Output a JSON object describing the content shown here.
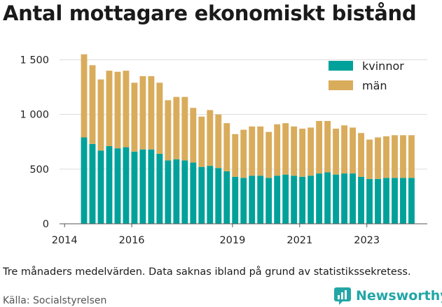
{
  "title": "Antal mottagare ekonomiskt bistånd",
  "note": "Tre månaders medelvärden. Data saknas ibland på grund av statistikssekretess.",
  "source": "Källa: Socialstyrelsen",
  "brand": {
    "name": "Newsworthy",
    "icon": "newsworthy-logo-icon",
    "color": "#23a6a6"
  },
  "chart_data": {
    "type": "bar",
    "stacked": true,
    "x_ticks": [
      "2014",
      "2016",
      "2019",
      "2021",
      "2023"
    ],
    "y_ticks": [
      "0",
      "500",
      "1 000",
      "1 500"
    ],
    "y_tick_values": [
      0,
      500,
      1000,
      1500
    ],
    "ylim": [
      0,
      1650
    ],
    "xlim": [
      2013.85,
      2024.8
    ],
    "x_tick_positions": [
      2014,
      2016,
      2019,
      2021,
      2023
    ],
    "grid": "horizontal",
    "legend_position": "top-right",
    "x": [
      2014.58,
      2014.83,
      2015.08,
      2015.33,
      2015.58,
      2015.83,
      2016.08,
      2016.33,
      2016.58,
      2016.83,
      2017.08,
      2017.33,
      2017.58,
      2017.83,
      2018.08,
      2018.33,
      2018.58,
      2018.83,
      2019.08,
      2019.33,
      2019.58,
      2019.83,
      2020.08,
      2020.33,
      2020.58,
      2020.83,
      2021.08,
      2021.33,
      2021.58,
      2021.83,
      2022.08,
      2022.33,
      2022.58,
      2022.83,
      2023.08,
      2023.33,
      2023.58,
      2023.83,
      2024.08,
      2024.33
    ],
    "series": [
      {
        "name": "kvinnor",
        "color": "#00a19a",
        "values": [
          790,
          730,
          670,
          710,
          690,
          700,
          660,
          680,
          680,
          640,
          580,
          590,
          580,
          560,
          520,
          530,
          510,
          480,
          430,
          420,
          440,
          440,
          420,
          440,
          450,
          440,
          430,
          440,
          460,
          470,
          450,
          460,
          460,
          430,
          410,
          410,
          420,
          420,
          420,
          420
        ]
      },
      {
        "name": "män",
        "color": "#d9ac5c",
        "values": [
          760,
          720,
          650,
          690,
          700,
          700,
          630,
          670,
          670,
          650,
          550,
          570,
          580,
          500,
          460,
          510,
          490,
          440,
          390,
          440,
          450,
          450,
          420,
          470,
          470,
          450,
          440,
          440,
          480,
          470,
          420,
          440,
          420,
          400,
          360,
          380,
          380,
          390,
          390,
          390
        ]
      }
    ]
  }
}
